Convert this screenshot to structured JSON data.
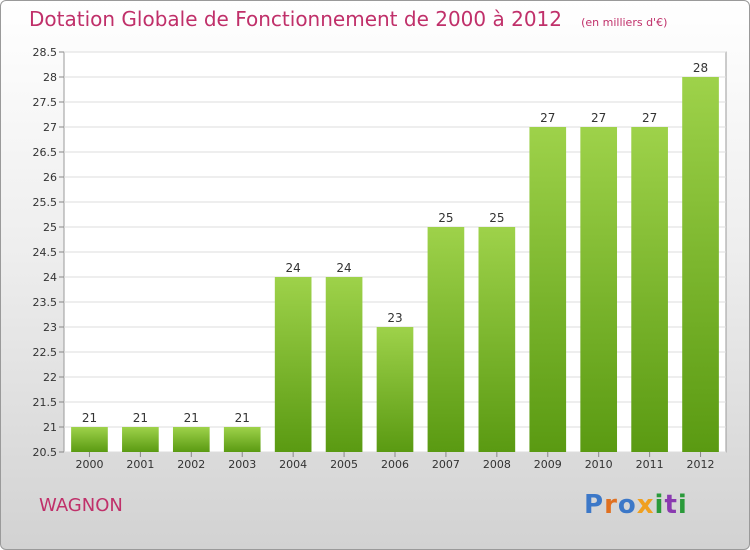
{
  "title": "Dotation Globale de Fonctionnement de 2000 à 2012",
  "unit": "(en milliers d'€)",
  "town": "WAGNON",
  "logo": {
    "letters": [
      "P",
      "r",
      "o",
      "x",
      "i",
      "t",
      "i"
    ],
    "colors": [
      "#3c78c8",
      "#e07020",
      "#3c78c8",
      "#f0a020",
      "#2a9a3a",
      "#8a3ab0",
      "#2a9a3a"
    ]
  },
  "colors": {
    "title": "#c0306a",
    "bar_top": "#9ed24a",
    "bar_bottom": "#5a9a12"
  },
  "chart_data": {
    "type": "bar",
    "categories": [
      "2000",
      "2001",
      "2002",
      "2003",
      "2004",
      "2005",
      "2006",
      "2007",
      "2008",
      "2009",
      "2010",
      "2011",
      "2012"
    ],
    "values": [
      21,
      21,
      21,
      21,
      24,
      24,
      23,
      25,
      25,
      27,
      27,
      27,
      28
    ],
    "title": "Dotation Globale de Fonctionnement de 2000 à 2012",
    "ylim": [
      20.5,
      28.5
    ],
    "yticks": [
      "20.5",
      "21",
      "21.5",
      "22",
      "22.5",
      "23",
      "23.5",
      "24",
      "24.5",
      "25",
      "25.5",
      "26",
      "26.5",
      "27",
      "27.5",
      "28",
      "28.5"
    ],
    "grid": true
  }
}
